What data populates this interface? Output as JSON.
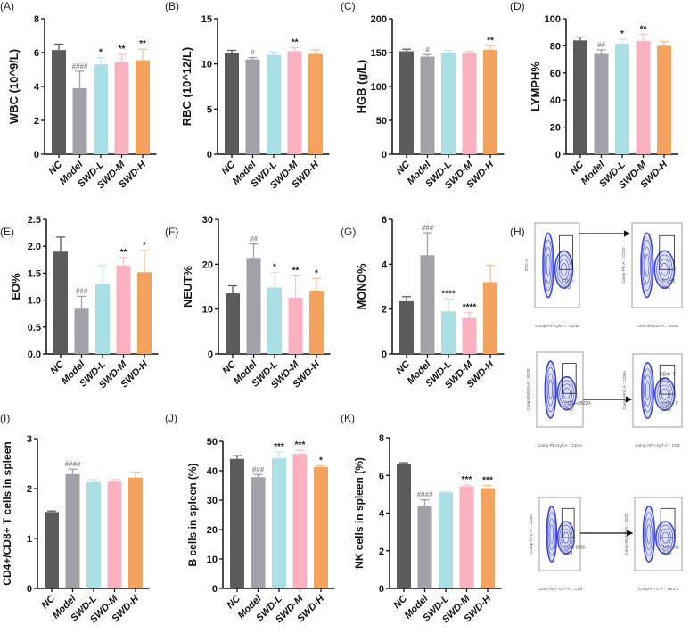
{
  "groups": [
    "NC",
    "Model",
    "SWD-L",
    "SWD-M",
    "SWD-H"
  ],
  "colors": {
    "NC": "#5b5b5b",
    "Model": "#a1a1a7",
    "SWD-L": "#a9dfe5",
    "SWD-M": "#f9b1c0",
    "SWD-H": "#f3a35e"
  },
  "err_colors": {
    "NC": "#5b5b5b",
    "Model": "#a1a1a7",
    "SWD-L": "#bfe9ee",
    "SWD-M": "#fbc3cf",
    "SWD-H": "#f7bf8c"
  },
  "chart_data": [
    {
      "id": "A",
      "label": "(A)",
      "type": "bar",
      "ylabel": "WBC (10^9/L)",
      "ylim": [
        0,
        8
      ],
      "ticks": [
        0,
        2,
        4,
        6,
        8
      ],
      "values": [
        6.15,
        3.9,
        5.3,
        5.45,
        5.55
      ],
      "errors": [
        0.35,
        1.0,
        0.4,
        0.45,
        0.65
      ],
      "sig": [
        "",
        "####",
        "*",
        "**",
        "**"
      ]
    },
    {
      "id": "B",
      "label": "(B)",
      "type": "bar",
      "ylabel": "RBC (10^12/L)",
      "ylim": [
        0,
        15
      ],
      "ticks": [
        0,
        5,
        10,
        15
      ],
      "values": [
        11.2,
        10.5,
        11.0,
        11.4,
        11.1
      ],
      "errors": [
        0.3,
        0.2,
        0.3,
        0.4,
        0.45
      ],
      "sig": [
        "",
        "#",
        "",
        "**",
        ""
      ]
    },
    {
      "id": "C",
      "label": "(C)",
      "type": "bar",
      "ylabel": "HGB (g/L)",
      "ylim": [
        0,
        200
      ],
      "ticks": [
        0,
        50,
        100,
        150,
        200
      ],
      "values": [
        152,
        144,
        150,
        149,
        154
      ],
      "errors": [
        3,
        3,
        3,
        3,
        6
      ],
      "sig": [
        "",
        "#",
        "",
        "",
        "**"
      ]
    },
    {
      "id": "D",
      "label": "(D)",
      "type": "bar",
      "ylabel": "LYMPH%",
      "ylim": [
        0,
        100
      ],
      "ticks": [
        0,
        20,
        40,
        60,
        80,
        100
      ],
      "values": [
        84,
        74,
        81.5,
        83.5,
        80
      ],
      "errors": [
        2.5,
        3,
        3.5,
        5,
        3
      ],
      "sig": [
        "",
        "##",
        "*",
        "**",
        ""
      ]
    },
    {
      "id": "E",
      "label": "(E)",
      "type": "bar",
      "ylabel": "EO%",
      "ylim": [
        0,
        2.5
      ],
      "ticks": [
        "0.0",
        "0.5",
        "1.0",
        "1.5",
        "2.0",
        "2.5"
      ],
      "values": [
        1.9,
        0.84,
        1.3,
        1.64,
        1.52
      ],
      "errors": [
        0.27,
        0.23,
        0.34,
        0.15,
        0.4
      ],
      "sig": [
        "",
        "###",
        "",
        "**",
        "*"
      ]
    },
    {
      "id": "F",
      "label": "(F)",
      "type": "bar",
      "ylabel": "NEUT%",
      "ylim": [
        0,
        30
      ],
      "ticks": [
        0,
        10,
        20,
        30
      ],
      "values": [
        13.5,
        21.4,
        14.8,
        12.5,
        14.1
      ],
      "errors": [
        1.7,
        3.1,
        3.4,
        4.9,
        2.7
      ],
      "sig": [
        "",
        "##",
        "*",
        "**",
        "*"
      ]
    },
    {
      "id": "G",
      "label": "(G)",
      "type": "bar",
      "ylabel": "MONO%",
      "ylim": [
        0,
        6
      ],
      "ticks": [
        0,
        2,
        4,
        6
      ],
      "values": [
        2.35,
        4.4,
        1.9,
        1.6,
        3.2
      ],
      "errors": [
        0.2,
        1.0,
        0.55,
        0.25,
        0.75
      ],
      "sig": [
        "",
        "###",
        "****",
        "****",
        ""
      ]
    },
    {
      "id": "I",
      "label": "(I)",
      "type": "bar",
      "ylabel": "CD4+/CD8+ T cells in spleen",
      "ylim": [
        0,
        3
      ],
      "ticks": [
        0,
        1,
        2,
        3
      ],
      "values": [
        1.53,
        2.29,
        2.13,
        2.14,
        2.22
      ],
      "errors": [
        0.02,
        0.1,
        0.05,
        0.04,
        0.11
      ],
      "sig": [
        "",
        "####",
        "",
        "",
        ""
      ]
    },
    {
      "id": "J",
      "label": "(J)",
      "type": "bar",
      "ylabel": "B cells in spleen (%)",
      "ylim": [
        0,
        50
      ],
      "ticks": [
        0,
        10,
        20,
        30,
        40,
        50
      ],
      "values": [
        44,
        37.8,
        44.2,
        45.7,
        41.2
      ],
      "errors": [
        1.1,
        0.9,
        2.1,
        1.2,
        0.5
      ],
      "sig": [
        "",
        "###",
        "***",
        "***",
        "*"
      ]
    },
    {
      "id": "K",
      "label": "(K)",
      "type": "bar",
      "ylabel": "NK cells in spleen (%)",
      "ylim": [
        0,
        8
      ],
      "ticks": [
        0,
        2,
        4,
        6,
        8
      ],
      "values": [
        6.62,
        4.4,
        5.1,
        5.42,
        5.32
      ],
      "errors": [
        0.05,
        0.3,
        0.05,
        0.07,
        0.15
      ],
      "sig": [
        "",
        "####",
        "",
        "***",
        "***"
      ]
    }
  ],
  "flow": {
    "label": "(H)",
    "plots": [
      {
        "ylab": "SSC-A",
        "xlab": "Comp-PE-Cy5-A :: CD3e",
        "gate": "CD3e-",
        "pct": "71.9"
      },
      {
        "ylab": "Comp-PE-A :: CD19",
        "xlab": "Comp-BV510-A :: B220",
        "gate": "B cells",
        "pct": "65.1"
      },
      {
        "ylab": "Comp-BV510-A :: B220",
        "xlab": "Comp-PE-Cy5-A :: CD3e",
        "gate": "CD3e+ B220-",
        "pct": "25.3"
      },
      {
        "ylab": "Comp-APC-A :: CD8a",
        "xlab": "Comp-APC-Cy7-A :: CD4",
        "gate": "CD8+ T",
        "pct": "33.9",
        "gate2": "CD4+ T",
        "pct2": "58.9"
      },
      {
        "ylab": "Comp-APC-A :: CD8a",
        "xlab": "Comp-APC-Cy7-A :: CD4",
        "gate": "CD4- CD8-",
        "pct": "15.3"
      },
      {
        "ylab": "Comp-BV510-A :: B220",
        "xlab": "Comp-FITC-A :: NK1.1",
        "gate": "NK cells",
        "pct": "6.05"
      }
    ]
  }
}
